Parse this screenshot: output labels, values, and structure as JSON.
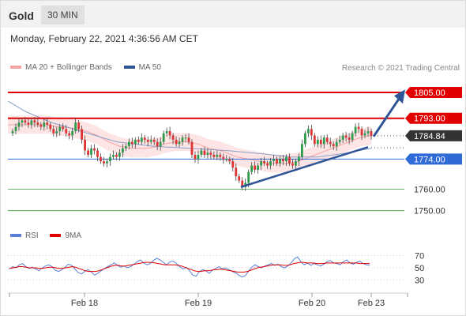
{
  "header": {
    "title": "Gold",
    "timeframe": "30 MIN"
  },
  "timestamp": "Monday, February 22, 2021 4:36:56 AM CET",
  "legend": {
    "main": [
      {
        "label": "MA 20 + Bollinger Bands",
        "color": "#f4a3a3"
      },
      {
        "label": "MA 50",
        "color": "#2f5597"
      }
    ],
    "rsi": [
      {
        "label": "RSI",
        "color": "#5b7fd6"
      },
      {
        "label": "9MA",
        "color": "#e00000"
      }
    ]
  },
  "copyright": "Research © 2021 Trading Central",
  "colors": {
    "up": "#2c9b4a",
    "down": "#e03232",
    "resistance": "#e00000",
    "support": "#2f6bd6",
    "pivot_green": "#3a9a3a",
    "trend": "#2f5597"
  },
  "chart_data": {
    "type": "candlestick",
    "instrument": "Gold",
    "timeframe": "30 MIN",
    "x_ticks": [
      "Feb 18",
      "Feb 19",
      "Feb 20",
      "Feb 23"
    ],
    "y_range": [
      1744,
      1812
    ],
    "levels": [
      {
        "label": "1805.00",
        "value": 1805.0,
        "kind": "target"
      },
      {
        "label": "1793.00",
        "value": 1793.0,
        "kind": "resistance"
      },
      {
        "label": "1784.84",
        "value": 1784.84,
        "kind": "last"
      },
      {
        "label": "1774.00",
        "value": 1774.0,
        "kind": "pivot"
      },
      {
        "label": "1760.00",
        "value": 1760.0,
        "kind": "support"
      },
      {
        "label": "1750.00",
        "value": 1750.0,
        "kind": "support"
      }
    ],
    "close_series": [
      1787,
      1789,
      1791,
      1792,
      1791,
      1790,
      1792,
      1791,
      1790,
      1789,
      1791,
      1790,
      1788,
      1786,
      1787,
      1789,
      1788,
      1786,
      1785,
      1787,
      1791,
      1788,
      1783,
      1778,
      1776,
      1779,
      1778,
      1775,
      1773,
      1772,
      1773,
      1775,
      1776,
      1775,
      1777,
      1779,
      1780,
      1782,
      1781,
      1783,
      1782,
      1784,
      1783,
      1782,
      1783,
      1782,
      1780,
      1782,
      1786,
      1787,
      1785,
      1783,
      1781,
      1782,
      1784,
      1784,
      1782,
      1776,
      1774,
      1776,
      1778,
      1776,
      1777,
      1776,
      1775,
      1776,
      1775,
      1774,
      1774,
      1773,
      1770,
      1766,
      1764,
      1761,
      1763,
      1768,
      1771,
      1769,
      1771,
      1773,
      1772,
      1771,
      1773,
      1774,
      1772,
      1774,
      1773,
      1775,
      1772,
      1771,
      1773,
      1775,
      1781,
      1786,
      1788,
      1785,
      1781,
      1783,
      1781,
      1784,
      1782,
      1781,
      1780,
      1782,
      1783,
      1785,
      1784,
      1783,
      1786,
      1789,
      1788,
      1785,
      1786,
      1787,
      1784.84
    ],
    "ma20": [
      1790,
      1790,
      1790,
      1790,
      1790,
      1790,
      1790,
      1790,
      1789.5,
      1789,
      1789,
      1788.5,
      1788,
      1787.5,
      1787,
      1786,
      1785,
      1783.5,
      1782,
      1781,
      1780,
      1779.5,
      1779,
      1779,
      1779,
      1779,
      1779.5,
      1780,
      1781,
      1781.5,
      1782,
      1782,
      1782,
      1781.5,
      1781,
      1780,
      1779,
      1778.5,
      1778,
      1777,
      1776,
      1775,
      1774.5,
      1774,
      1773.5,
      1773,
      1772.5,
      1772,
      1772,
      1772,
      1772,
      1772.5,
      1773,
      1774,
      1775,
      1776,
      1777,
      1778,
      1779,
      1780,
      1781,
      1782,
      1783,
      1784,
      1784.5,
      1785
    ],
    "ma20_span": [
      10,
      470
    ],
    "ma50_points": [
      [
        0,
        1801
      ],
      [
        0.05,
        1796
      ],
      [
        0.12,
        1791
      ],
      [
        0.2,
        1787
      ],
      [
        0.3,
        1782
      ],
      [
        0.4,
        1780
      ],
      [
        0.5,
        1779
      ],
      [
        0.6,
        1778
      ],
      [
        0.7,
        1776.5
      ],
      [
        0.78,
        1775
      ],
      [
        0.85,
        1775
      ],
      [
        0.92,
        1776.5
      ],
      [
        1,
        1779
      ]
    ],
    "trendline": {
      "from": [
        "Feb 19.5",
        1761
      ],
      "to": [
        "Feb 23",
        1779
      ]
    },
    "projection_arrow": {
      "from": 1784.84,
      "to": 1805.0
    },
    "rsi": {
      "levels": [
        70,
        50,
        30
      ],
      "range": [
        20,
        80
      ],
      "values": [
        48,
        52,
        50,
        55,
        57,
        52,
        49,
        51,
        48,
        45,
        50,
        53,
        55,
        52,
        46,
        44,
        47,
        51,
        56,
        54,
        48,
        42,
        40,
        44,
        47,
        43,
        38,
        41,
        45,
        49,
        52,
        55,
        58,
        54,
        51,
        53,
        50,
        52,
        56,
        60,
        63,
        58,
        55,
        57,
        62,
        66,
        63,
        59,
        55,
        60,
        61,
        57,
        52,
        48,
        51,
        45,
        38,
        36,
        44,
        47,
        45,
        41,
        46,
        49,
        52,
        48,
        50,
        47,
        44,
        42,
        38,
        35,
        37,
        44,
        51,
        55,
        52,
        50,
        53,
        55,
        57,
        54,
        56,
        52,
        50,
        53,
        58,
        65,
        68,
        60,
        55,
        58,
        54,
        57,
        55,
        53,
        56,
        60,
        62,
        58,
        57,
        55,
        60,
        63,
        58,
        56,
        59,
        61,
        57,
        55,
        54
      ]
    },
    "rsi_ma": [
      49,
      50,
      51,
      52,
      52,
      51,
      50,
      50,
      50,
      49,
      49,
      50,
      51,
      51,
      50,
      49,
      49,
      50,
      51,
      52,
      51,
      49,
      47,
      45,
      44,
      44,
      44,
      45,
      47,
      49,
      51,
      53,
      54,
      54,
      53,
      53,
      54,
      55,
      56,
      57,
      58,
      59,
      59,
      59,
      58,
      57,
      56,
      55,
      55,
      55,
      55,
      54,
      53,
      51,
      49,
      47,
      45,
      44,
      44,
      45,
      45,
      46,
      47,
      47,
      48,
      47,
      46,
      45,
      44,
      43,
      43,
      43,
      44,
      46,
      48,
      50,
      51,
      52,
      53,
      54,
      55,
      55,
      55,
      54,
      54,
      55,
      57,
      58,
      59,
      59,
      58,
      58,
      58,
      57,
      57,
      57,
      58,
      58,
      58,
      58,
      58,
      58,
      58,
      58,
      58,
      58,
      57,
      57,
      57,
      57
    ]
  }
}
